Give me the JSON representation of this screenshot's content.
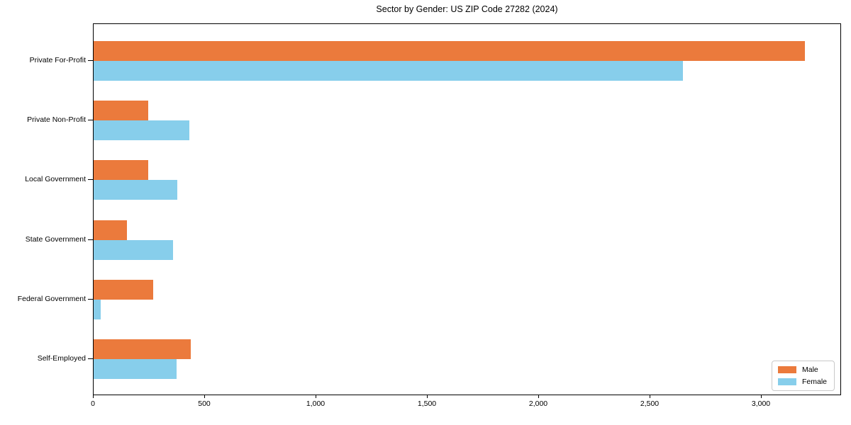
{
  "title": "Sector by Gender: US ZIP Code 27282 (2024)",
  "chart_data": {
    "type": "bar",
    "orientation": "horizontal",
    "title": "Sector by Gender: US ZIP Code 27282 (2024)",
    "categories": [
      "Private For-Profit",
      "Private Non-Profit",
      "Local Government",
      "State Government",
      "Federal Government",
      "Self-Employed"
    ],
    "series": [
      {
        "name": "Male",
        "color": "#eb7a3c",
        "values": [
          3195,
          245,
          245,
          148,
          268,
          437
        ]
      },
      {
        "name": "Female",
        "color": "#87ceeb",
        "values": [
          2648,
          430,
          375,
          358,
          32,
          372
        ]
      }
    ],
    "xlabel": "",
    "ylabel": "",
    "xlim": [
      0,
      3360
    ],
    "xticks": [
      0,
      500,
      1000,
      1500,
      2000,
      2500,
      3000
    ],
    "xtick_labels": [
      "0",
      "500",
      "1,000",
      "1,500",
      "2,000",
      "2,500",
      "3,000"
    ],
    "grid": false,
    "legend_position": "lower right"
  }
}
